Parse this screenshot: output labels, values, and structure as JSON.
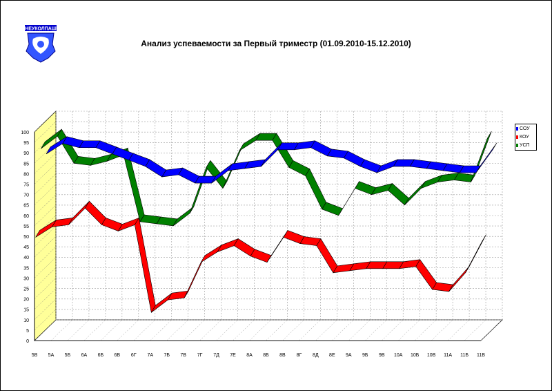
{
  "chart_data": {
    "type": "line",
    "title": "Анализ успеваемости за Первый триместр (01.09.2010-15.12.2010)",
    "xlabel": "",
    "ylabel": "",
    "ylim": [
      0,
      100
    ],
    "yticks": [
      0,
      5,
      10,
      15,
      20,
      25,
      30,
      35,
      40,
      45,
      50,
      55,
      60,
      65,
      70,
      75,
      80,
      85,
      90,
      95,
      100
    ],
    "categories": [
      "5В",
      "5А",
      "5Б",
      "6А",
      "6Б",
      "6В",
      "6Г",
      "7А",
      "7Б",
      "7В",
      "7Г",
      "7Д",
      "7Е",
      "8А",
      "8Б",
      "8В",
      "8Г",
      "8Д",
      "8Е",
      "9А",
      "9Б",
      "9В",
      "10А",
      "10Б",
      "10В",
      "11А",
      "11Б",
      "11В"
    ],
    "series": [
      {
        "name": "СОУ",
        "color": "#0000ff",
        "values": [
          84,
          89,
          87,
          87,
          84,
          81,
          78,
          73,
          74,
          70,
          70,
          76,
          77,
          78,
          86,
          86,
          87,
          83,
          82,
          78,
          75,
          78,
          78,
          77,
          76,
          75,
          75,
          86
        ]
      },
      {
        "name": "КОУ",
        "color": "#ff0000",
        "values": [
          49,
          54,
          55,
          63,
          55,
          52,
          55,
          13,
          19,
          20,
          37,
          42,
          45,
          40,
          37,
          49,
          46,
          45,
          32,
          33,
          34,
          34,
          34,
          35,
          24,
          23,
          32,
          47
        ]
      },
      {
        "name": "УСП",
        "color": "#008000",
        "values": [
          89,
          95,
          82,
          81,
          83,
          86,
          54,
          53,
          52,
          58,
          80,
          70,
          88,
          93,
          93,
          80,
          76,
          60,
          57,
          70,
          67,
          69,
          62,
          70,
          73,
          74,
          73,
          94
        ]
      }
    ],
    "grid": true,
    "legend_position": "right"
  },
  "legend": {
    "items": [
      {
        "label": "СОУ",
        "color": "#0000ff"
      },
      {
        "label": "КОУ",
        "color": "#ff0000"
      },
      {
        "label": "УСП",
        "color": "#008000"
      }
    ]
  },
  "logo": {
    "text": "НЕУКОЛПАШ"
  }
}
